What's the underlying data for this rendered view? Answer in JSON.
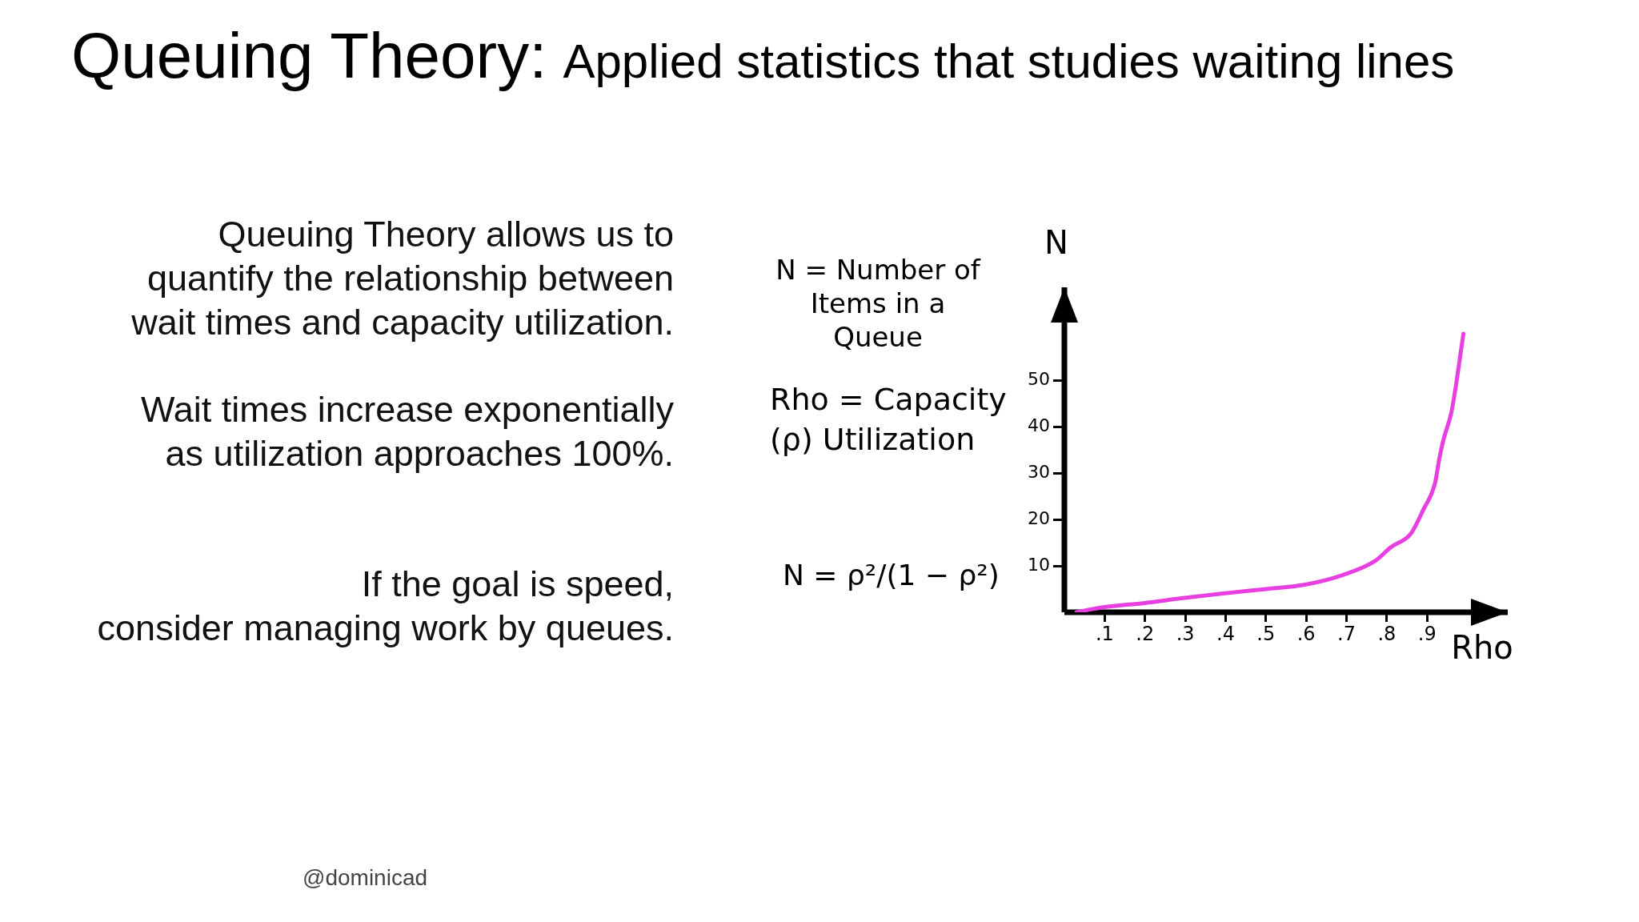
{
  "chart_data": {
    "type": "line",
    "title": "Queuing Theory:",
    "subtitle": "Applied statistics that studies waiting lines",
    "xlabel": "Rho",
    "ylabel": "N",
    "x": [
      0.03,
      0.09,
      0.2,
      0.29,
      0.39,
      0.5,
      0.6,
      0.69,
      0.77,
      0.81,
      0.86,
      0.89,
      0.92,
      0.93,
      0.94,
      0.96,
      0.97,
      0.98,
      0.99
    ],
    "series": [
      {
        "color": "#e840e0",
        "values": [
          0,
          1,
          2,
          3,
          4,
          5,
          6,
          8,
          11,
          14,
          17,
          22,
          28,
          33,
          37,
          43,
          48,
          54,
          60
        ]
      }
    ],
    "xlim": [
      0,
      1.1
    ],
    "xticks": [
      {
        "value": 0.1,
        "label": ".1"
      },
      {
        "value": 0.2,
        "label": ".2"
      },
      {
        "value": 0.3,
        "label": ".3"
      },
      {
        "value": 0.4,
        "label": ".4"
      },
      {
        "value": 0.5,
        "label": ".5"
      },
      {
        "value": 0.6,
        "label": ".6"
      },
      {
        "value": 0.7,
        "label": ".7"
      },
      {
        "value": 0.8,
        "label": ".8"
      },
      {
        "value": 0.9,
        "label": ".9"
      }
    ],
    "ylim": [
      0,
      70
    ],
    "yticks": [
      10,
      20,
      30,
      40,
      50
    ],
    "grid": false,
    "legend": false,
    "annotations": [
      "Queuing Theory allows us to\nquantify the relationship between\nwait times and capacity utilization.",
      "Wait times increase exponentially\nas utilization approaches 100%.",
      "If the goal is speed,\nconsider managing work by queues.",
      "N = Number of\nItems in a\nQueue",
      "Rho = Capacity\n(ρ) Utilization",
      "N = ρ²/(1 − ρ²)",
      "@dominicad"
    ]
  }
}
